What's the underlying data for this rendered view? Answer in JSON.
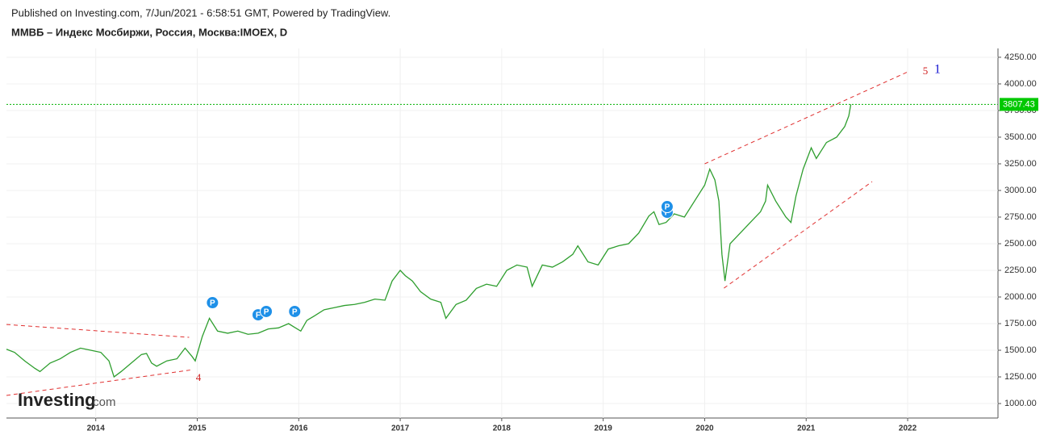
{
  "header": {
    "published": "Published on Investing.com, 7/Jun/2021 - 6:58:51 GMT, Powered by TradingView.",
    "symbol": "ММВБ – Индекс Мосбиржи, Россия, Москва:IMOEX, D"
  },
  "logo": {
    "brand": "Investing",
    "suffix": ".com"
  },
  "chart_data": {
    "type": "line",
    "grid": true,
    "xlim": [
      2013.12,
      2022.89
    ],
    "xticks": [
      2014,
      2015,
      2016,
      2017,
      2018,
      2019,
      2020,
      2021,
      2022
    ],
    "ylim": [
      864,
      4333
    ],
    "yticks": [
      {
        "value": 1000,
        "label": "1000.00"
      },
      {
        "value": 1250,
        "label": "1250.00"
      },
      {
        "value": 1500,
        "label": "1500.00"
      },
      {
        "value": 1750,
        "label": "1750.00"
      },
      {
        "value": 2000,
        "label": "2000.00"
      },
      {
        "value": 2250,
        "label": "2250.00"
      },
      {
        "value": 2500,
        "label": "2500.00"
      },
      {
        "value": 2750,
        "label": "2750.00"
      },
      {
        "value": 3000,
        "label": "3000.00"
      },
      {
        "value": 3250,
        "label": "3250.00"
      },
      {
        "value": 3500,
        "label": "3500.00"
      },
      {
        "value": 3750,
        "label": "3750.00"
      },
      {
        "value": 4000,
        "label": "4000.00"
      },
      {
        "value": 4250,
        "label": "4250.00"
      }
    ],
    "series": [
      {
        "name": "IMOEX",
        "color": "#2e9e2e",
        "x": [
          2013.12,
          2013.2,
          2013.3,
          2013.4,
          2013.45,
          2013.55,
          2013.65,
          2013.75,
          2013.85,
          2013.95,
          2014.05,
          2014.13,
          2014.18,
          2014.25,
          2014.35,
          2014.45,
          2014.5,
          2014.55,
          2014.6,
          2014.7,
          2014.8,
          2014.88,
          2014.95,
          2014.98,
          2015.05,
          2015.12,
          2015.2,
          2015.3,
          2015.4,
          2015.5,
          2015.6,
          2015.7,
          2015.8,
          2015.9,
          2015.95,
          2016.02,
          2016.08,
          2016.15,
          2016.25,
          2016.35,
          2016.45,
          2016.55,
          2016.65,
          2016.75,
          2016.85,
          2016.92,
          2017.0,
          2017.05,
          2017.12,
          2017.2,
          2017.3,
          2017.4,
          2017.45,
          2017.55,
          2017.65,
          2017.75,
          2017.85,
          2017.95,
          2018.05,
          2018.15,
          2018.25,
          2018.3,
          2018.4,
          2018.5,
          2018.6,
          2018.7,
          2018.75,
          2018.85,
          2018.95,
          2019.05,
          2019.15,
          2019.25,
          2019.35,
          2019.45,
          2019.5,
          2019.55,
          2019.62,
          2019.7,
          2019.8,
          2019.9,
          2020.0,
          2020.05,
          2020.1,
          2020.14,
          2020.17,
          2020.2,
          2020.25,
          2020.35,
          2020.45,
          2020.55,
          2020.6,
          2020.62,
          2020.7,
          2020.8,
          2020.85,
          2020.9,
          2020.97,
          2021.05,
          2021.1,
          2021.2,
          2021.3,
          2021.38,
          2021.42,
          2021.44
        ],
        "values": [
          1510,
          1480,
          1400,
          1330,
          1300,
          1380,
          1420,
          1480,
          1520,
          1500,
          1480,
          1400,
          1250,
          1300,
          1380,
          1460,
          1470,
          1380,
          1350,
          1400,
          1420,
          1520,
          1440,
          1400,
          1630,
          1800,
          1680,
          1660,
          1680,
          1650,
          1660,
          1700,
          1710,
          1750,
          1720,
          1680,
          1780,
          1820,
          1880,
          1900,
          1920,
          1930,
          1950,
          1980,
          1970,
          2150,
          2250,
          2200,
          2150,
          2050,
          1980,
          1950,
          1800,
          1930,
          1970,
          2080,
          2120,
          2100,
          2250,
          2300,
          2280,
          2100,
          2300,
          2280,
          2330,
          2400,
          2480,
          2330,
          2300,
          2450,
          2480,
          2500,
          2600,
          2760,
          2800,
          2680,
          2700,
          2780,
          2750,
          2900,
          3050,
          3200,
          3100,
          2900,
          2400,
          2150,
          2500,
          2600,
          2700,
          2800,
          2900,
          3050,
          2900,
          2750,
          2700,
          2950,
          3200,
          3400,
          3300,
          3450,
          3500,
          3600,
          3700,
          3807.43
        ]
      }
    ],
    "trendlines": [
      {
        "color": "#e03030",
        "x": [
          2013.12,
          2014.92
        ],
        "y": [
          1742,
          1621
        ]
      },
      {
        "color": "#e03030",
        "x": [
          2013.12,
          2014.96
        ],
        "y": [
          1076,
          1318
        ]
      },
      {
        "color": "#e03030",
        "x": [
          2020.0,
          2022.02
        ],
        "y": [
          3250,
          4121
        ]
      },
      {
        "color": "#e03030",
        "x": [
          2020.19,
          2021.65
        ],
        "y": [
          2083,
          3083
        ]
      }
    ],
    "events": [
      {
        "label": "P",
        "x": 2015.15,
        "y": 1947
      },
      {
        "label": "F",
        "x": 2015.6,
        "y": 1833
      },
      {
        "label": "P",
        "x": 2015.68,
        "y": 1864
      },
      {
        "label": "P",
        "x": 2015.96,
        "y": 1864
      },
      {
        "label": "P",
        "x": 2019.63,
        "y": 2795
      },
      {
        "label": "P",
        "x": 2019.63,
        "y": 2848
      }
    ],
    "annotations": [
      "4",
      "5",
      "1"
    ]
  }
}
